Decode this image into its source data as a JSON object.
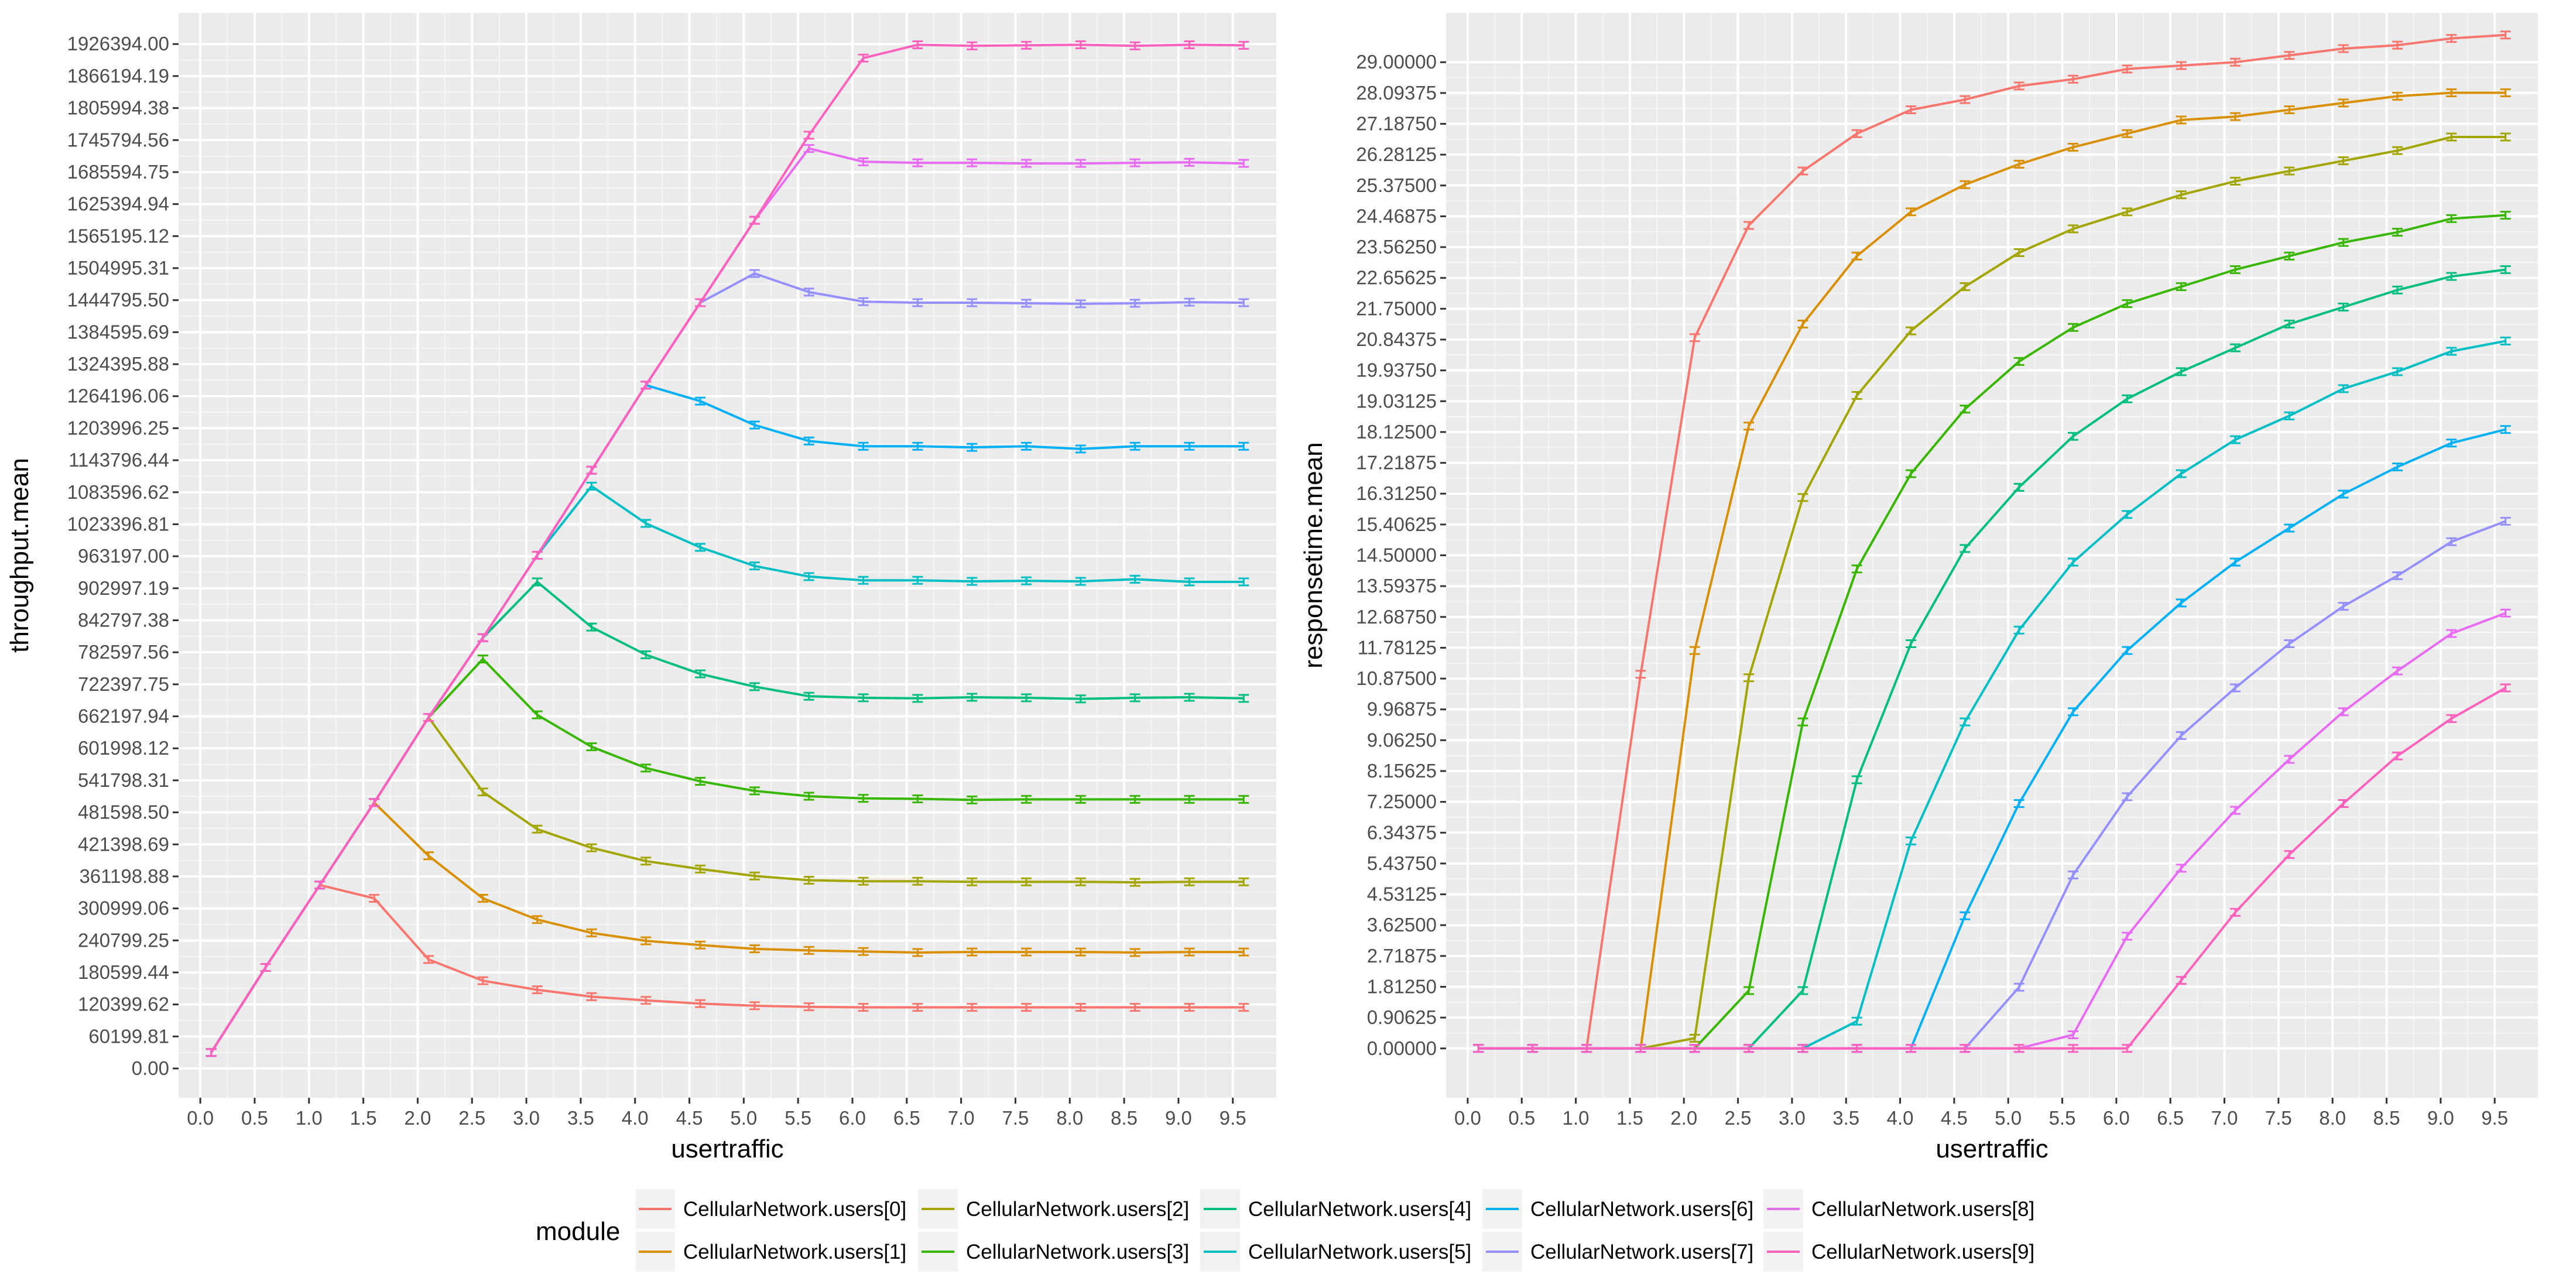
{
  "chart_data": [
    {
      "type": "line",
      "xlabel": "usertraffic",
      "ylabel": "throughput.mean",
      "x": [
        0.1,
        0.6,
        1.1,
        1.6,
        2.1,
        2.6,
        3.1,
        3.6,
        4.1,
        4.6,
        5.1,
        5.6,
        6.1,
        6.6,
        7.1,
        7.6,
        8.1,
        8.6,
        9.1,
        9.6
      ],
      "xticks": [
        "0.0",
        "0.5",
        "1.0",
        "1.5",
        "2.0",
        "2.5",
        "3.0",
        "3.5",
        "4.0",
        "4.5",
        "5.0",
        "5.5",
        "6.0",
        "6.5",
        "7.0",
        "7.5",
        "8.0",
        "8.5",
        "9.0",
        "9.5"
      ],
      "xlim": [
        -0.2,
        9.9
      ],
      "ylim": [
        -55000,
        1985000
      ],
      "yticks": [
        "0.00",
        "60199.81",
        "120399.62",
        "180599.44",
        "240799.25",
        "300999.06",
        "361198.88",
        "421398.69",
        "481598.50",
        "541798.31",
        "601998.12",
        "662197.94",
        "722397.75",
        "782597.56",
        "842797.38",
        "902997.19",
        "963197.00",
        "1023396.81",
        "1083596.62",
        "1143796.44",
        "1203996.25",
        "1264196.06",
        "1324395.88",
        "1384595.69",
        "1444795.50",
        "1504995.31",
        "1565195.12",
        "1625394.94",
        "1685594.75",
        "1745794.56",
        "1805994.38",
        "1866194.19",
        "1926394.00"
      ],
      "grid": true,
      "series": [
        {
          "name": "CellularNetwork.users[0]",
          "values": [
            30000,
            190000,
            345000,
            320000,
            205000,
            165000,
            148000,
            135000,
            128000,
            122000,
            118000,
            116000,
            115000,
            115000,
            115000,
            115000,
            115000,
            115000,
            115000,
            115000
          ]
        },
        {
          "name": "CellularNetwork.users[1]",
          "values": [
            30000,
            190000,
            345000,
            500000,
            400000,
            320000,
            280000,
            255000,
            240000,
            232000,
            225000,
            222000,
            220000,
            218000,
            219000,
            219000,
            219000,
            218000,
            219000,
            219000
          ]
        },
        {
          "name": "CellularNetwork.users[2]",
          "values": [
            30000,
            190000,
            345000,
            500000,
            660000,
            520000,
            450000,
            415000,
            390000,
            375000,
            362000,
            354000,
            352000,
            352000,
            351000,
            351000,
            351000,
            350000,
            351000,
            351000
          ]
        },
        {
          "name": "CellularNetwork.users[3]",
          "values": [
            30000,
            190000,
            345000,
            500000,
            660000,
            770000,
            665000,
            605000,
            565000,
            540000,
            522000,
            512000,
            508000,
            507000,
            505000,
            506000,
            506000,
            506000,
            506000,
            506000
          ]
        },
        {
          "name": "CellularNetwork.users[4]",
          "values": [
            30000,
            190000,
            345000,
            500000,
            660000,
            810000,
            915000,
            830000,
            778000,
            742000,
            718000,
            700000,
            697000,
            696000,
            698000,
            697000,
            695000,
            697000,
            698000,
            696000
          ]
        },
        {
          "name": "CellularNetwork.users[5]",
          "values": [
            30000,
            190000,
            345000,
            500000,
            660000,
            810000,
            965000,
            1095000,
            1025000,
            980000,
            945000,
            925000,
            918000,
            918000,
            916000,
            917000,
            916000,
            920000,
            915000,
            915000
          ]
        },
        {
          "name": "CellularNetwork.users[6]",
          "values": [
            30000,
            190000,
            345000,
            500000,
            660000,
            810000,
            965000,
            1125000,
            1285000,
            1255000,
            1210000,
            1180000,
            1170000,
            1170000,
            1168000,
            1170000,
            1165000,
            1170000,
            1170000,
            1170000
          ]
        },
        {
          "name": "CellularNetwork.users[7]",
          "values": [
            30000,
            190000,
            345000,
            500000,
            660000,
            810000,
            965000,
            1125000,
            1285000,
            1440000,
            1495000,
            1460000,
            1442000,
            1440000,
            1440000,
            1439000,
            1438000,
            1439000,
            1441000,
            1440000
          ]
        },
        {
          "name": "CellularNetwork.users[8]",
          "values": [
            30000,
            190000,
            345000,
            500000,
            660000,
            810000,
            965000,
            1125000,
            1285000,
            1440000,
            1595000,
            1730000,
            1705000,
            1703000,
            1703000,
            1702000,
            1702000,
            1703000,
            1704000,
            1702000
          ]
        },
        {
          "name": "CellularNetwork.users[9]",
          "values": [
            30000,
            190000,
            345000,
            500000,
            660000,
            810000,
            965000,
            1125000,
            1285000,
            1440000,
            1595000,
            1755000,
            1900000,
            1925000,
            1923000,
            1924000,
            1925000,
            1923000,
            1925000,
            1924000
          ]
        }
      ]
    },
    {
      "type": "line",
      "xlabel": "usertraffic",
      "ylabel": "responsetime.mean",
      "x": [
        0.1,
        0.6,
        1.1,
        1.6,
        2.1,
        2.6,
        3.1,
        3.6,
        4.1,
        4.6,
        5.1,
        5.6,
        6.1,
        6.6,
        7.1,
        7.6,
        8.1,
        8.6,
        9.1,
        9.6
      ],
      "xticks": [
        "0.0",
        "0.5",
        "1.0",
        "1.5",
        "2.0",
        "2.5",
        "3.0",
        "3.5",
        "4.0",
        "4.5",
        "5.0",
        "5.5",
        "6.0",
        "6.5",
        "7.0",
        "7.5",
        "8.0",
        "8.5",
        "9.0",
        "9.5"
      ],
      "xlim": [
        -0.2,
        9.9
      ],
      "ylim": [
        -1.45,
        30.45
      ],
      "yticks": [
        "0.00000",
        "0.90625",
        "1.81250",
        "2.71875",
        "3.62500",
        "4.53125",
        "5.43750",
        "6.34375",
        "7.25000",
        "8.15625",
        "9.06250",
        "9.96875",
        "10.87500",
        "11.78125",
        "12.68750",
        "13.59375",
        "14.50000",
        "15.40625",
        "16.31250",
        "17.21875",
        "18.12500",
        "19.03125",
        "19.93750",
        "20.84375",
        "21.75000",
        "22.65625",
        "23.56250",
        "24.46875",
        "25.37500",
        "26.28125",
        "27.18750",
        "28.09375",
        "29.00000"
      ],
      "grid": true,
      "series": [
        {
          "name": "CellularNetwork.users[0]",
          "values": [
            0,
            0,
            0,
            11.0,
            20.9,
            24.2,
            25.8,
            26.9,
            27.6,
            27.9,
            28.3,
            28.5,
            28.8,
            28.9,
            29.0,
            29.2,
            29.4,
            29.5,
            29.7,
            29.8
          ]
        },
        {
          "name": "CellularNetwork.users[1]",
          "values": [
            0,
            0,
            0,
            0,
            11.7,
            18.3,
            21.3,
            23.3,
            24.6,
            25.4,
            26.0,
            26.5,
            26.9,
            27.3,
            27.4,
            27.6,
            27.8,
            28.0,
            28.1,
            28.1
          ]
        },
        {
          "name": "CellularNetwork.users[2]",
          "values": [
            0,
            0,
            0,
            0,
            0.3,
            10.9,
            16.2,
            19.2,
            21.1,
            22.4,
            23.4,
            24.1,
            24.6,
            25.1,
            25.5,
            25.8,
            26.1,
            26.4,
            26.8,
            26.8
          ]
        },
        {
          "name": "CellularNetwork.users[3]",
          "values": [
            0,
            0,
            0,
            0,
            0,
            1.7,
            9.6,
            14.1,
            16.9,
            18.8,
            20.2,
            21.2,
            21.9,
            22.4,
            22.9,
            23.3,
            23.7,
            24.0,
            24.4,
            24.5
          ]
        },
        {
          "name": "CellularNetwork.users[4]",
          "values": [
            0,
            0,
            0,
            0,
            0,
            0,
            1.7,
            7.9,
            11.9,
            14.7,
            16.5,
            18.0,
            19.1,
            19.9,
            20.6,
            21.3,
            21.8,
            22.3,
            22.7,
            22.9
          ]
        },
        {
          "name": "CellularNetwork.users[5]",
          "values": [
            0,
            0,
            0,
            0,
            0,
            0,
            0,
            0.8,
            6.1,
            9.6,
            12.3,
            14.3,
            15.7,
            16.9,
            17.9,
            18.6,
            19.4,
            19.9,
            20.5,
            20.8
          ]
        },
        {
          "name": "CellularNetwork.users[6]",
          "values": [
            0,
            0,
            0,
            0,
            0,
            0,
            0,
            0,
            0,
            3.9,
            7.2,
            9.9,
            11.7,
            13.1,
            14.3,
            15.3,
            16.3,
            17.1,
            17.8,
            18.2
          ]
        },
        {
          "name": "CellularNetwork.users[7]",
          "values": [
            0,
            0,
            0,
            0,
            0,
            0,
            0,
            0,
            0,
            0,
            1.8,
            5.1,
            7.4,
            9.2,
            10.6,
            11.9,
            13.0,
            13.9,
            14.9,
            15.5
          ]
        },
        {
          "name": "CellularNetwork.users[8]",
          "values": [
            0,
            0,
            0,
            0,
            0,
            0,
            0,
            0,
            0,
            0,
            0,
            0.4,
            3.3,
            5.3,
            7.0,
            8.5,
            9.9,
            11.1,
            12.2,
            12.8
          ]
        },
        {
          "name": "CellularNetwork.users[9]",
          "values": [
            0,
            0,
            0,
            0,
            0,
            0,
            0,
            0,
            0,
            0,
            0,
            0,
            0,
            2.0,
            4.0,
            5.7,
            7.2,
            8.6,
            9.7,
            10.6
          ]
        }
      ]
    }
  ],
  "legend": {
    "title": "module",
    "placement": "bottom",
    "items": [
      {
        "label": "CellularNetwork.users[0]",
        "color": "#F8766D"
      },
      {
        "label": "CellularNetwork.users[1]",
        "color": "#D89000"
      },
      {
        "label": "CellularNetwork.users[2]",
        "color": "#A3A500"
      },
      {
        "label": "CellularNetwork.users[3]",
        "color": "#39B600"
      },
      {
        "label": "CellularNetwork.users[4]",
        "color": "#00BF7D"
      },
      {
        "label": "CellularNetwork.users[5]",
        "color": "#00BFC4"
      },
      {
        "label": "CellularNetwork.users[6]",
        "color": "#00B0F6"
      },
      {
        "label": "CellularNetwork.users[7]",
        "color": "#9590FF"
      },
      {
        "label": "CellularNetwork.users[8]",
        "color": "#E76BF3"
      },
      {
        "label": "CellularNetwork.users[9]",
        "color": "#FF62BC"
      }
    ]
  }
}
